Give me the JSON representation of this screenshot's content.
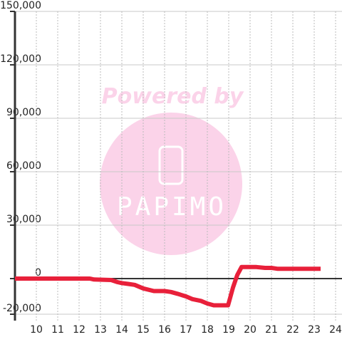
{
  "chart_data": {
    "type": "line",
    "annotations": [
      "Powered by",
      "PAPIMO"
    ],
    "x": [
      9,
      12.5,
      12.7,
      13.5,
      13.8,
      14.0,
      14.3,
      14.6,
      15.0,
      15.5,
      16.0,
      16.3,
      16.6,
      17.0,
      17.3,
      17.7,
      18.0,
      18.3,
      18.97,
      19.2,
      19.4,
      19.6,
      20.0,
      20.3,
      20.7,
      21.0,
      21.3,
      22.0,
      23.3
    ],
    "values": [
      0,
      0,
      -500,
      -800,
      -2000,
      -2500,
      -3000,
      -3500,
      -5500,
      -7000,
      -7000,
      -7500,
      -8500,
      -10000,
      -11500,
      -12500,
      -14000,
      -15000,
      -15000,
      -5000,
      2000,
      6500,
      6500,
      6500,
      6000,
      6000,
      5500,
      5500,
      5500
    ],
    "color": "#e8203a",
    "xlim": [
      9,
      24.3
    ],
    "xticks": [
      10,
      11,
      12,
      13,
      14,
      15,
      16,
      17,
      18,
      19,
      20,
      21,
      22,
      23,
      24
    ],
    "ylim": [
      -23600,
      150000
    ],
    "yticks": [
      {
        "value": -20000,
        "label": "-20,000"
      },
      0,
      {
        "value": 30000,
        "label": "30,000"
      },
      {
        "value": 60000,
        "label": "60,000"
      },
      {
        "value": 90000,
        "label": "90,000"
      },
      {
        "value": 120000,
        "label": "120,000"
      },
      {
        "value": 150000,
        "label": "150,000"
      }
    ],
    "grid": true
  }
}
